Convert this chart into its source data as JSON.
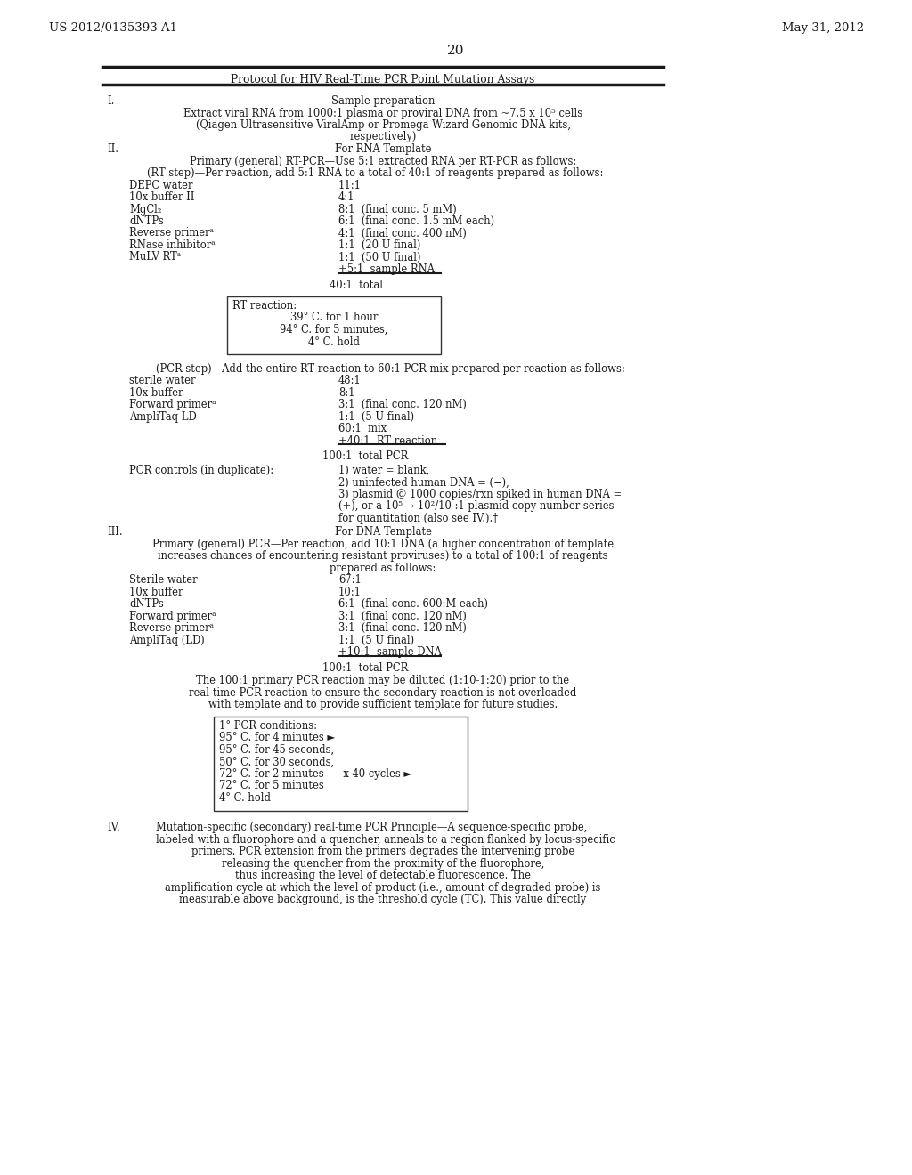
{
  "bg_color": "#ffffff",
  "header_left": "US 2012/0135393 A1",
  "header_right": "May 31, 2012",
  "page_number": "20",
  "table_title": "Protocol for HIV Real-Time PCR Point Mutation Assays"
}
